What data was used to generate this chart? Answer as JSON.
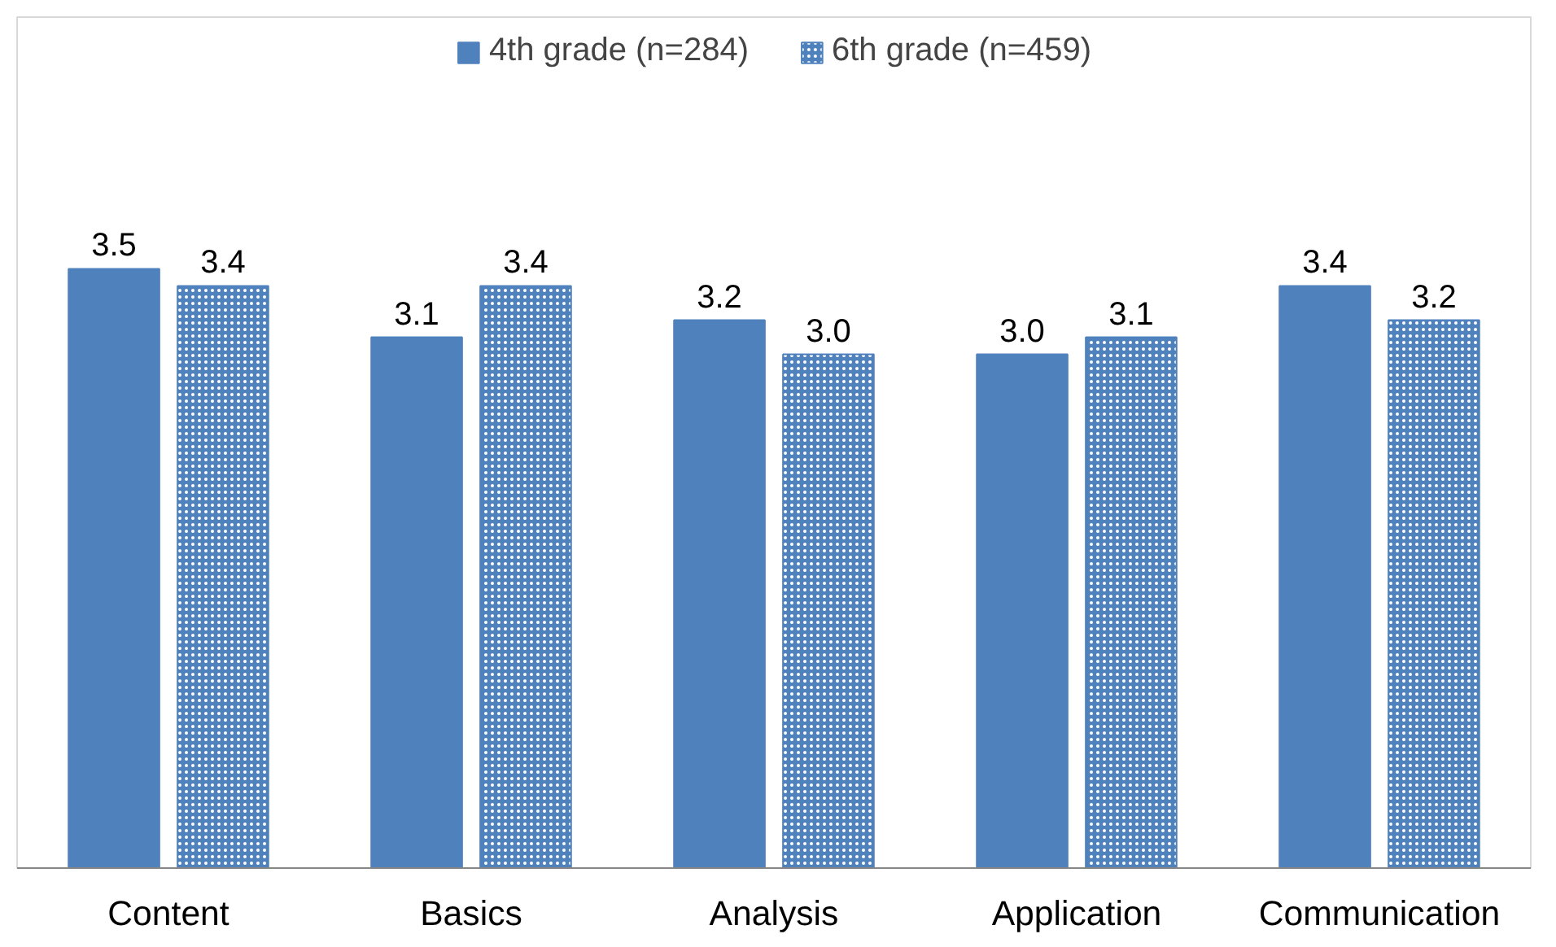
{
  "chart_data": {
    "type": "bar",
    "categories": [
      "Content",
      "Basics",
      "Analysis",
      "Application",
      "Communication"
    ],
    "series": [
      {
        "name": "4th grade (n=284)",
        "color": "#4f81bd",
        "values": [
          3.5,
          3.1,
          3.2,
          3.0,
          3.4
        ],
        "value_labels": [
          "3.5",
          "3.1",
          "3.2",
          "3.0",
          "3.4"
        ]
      },
      {
        "name": "6th grade (n=459)",
        "color": "#4f81bd",
        "values": [
          3.4,
          3.4,
          3.0,
          3.1,
          3.2
        ],
        "value_labels": [
          "3.4",
          "3.4",
          "3.0",
          "3.1",
          "3.2"
        ]
      }
    ],
    "legend": "top",
    "grid": false
  }
}
